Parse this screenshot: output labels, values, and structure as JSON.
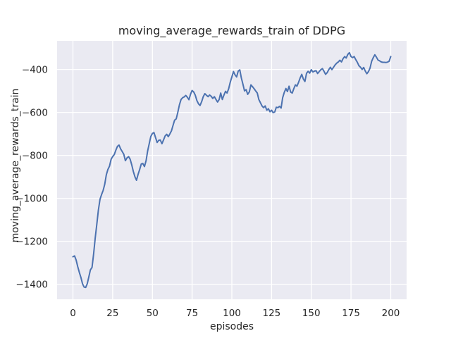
{
  "chart_data": {
    "type": "line",
    "title": "moving_average_rewards_train of DDPG",
    "xlabel": "episodes",
    "ylabel": "moving_average_rewards_train",
    "xlim": [
      -10,
      210
    ],
    "ylim": [
      -1470,
      -267
    ],
    "x_ticks": [
      0,
      25,
      50,
      75,
      100,
      125,
      150,
      175,
      200
    ],
    "x_tick_labels": [
      "0",
      "25",
      "50",
      "75",
      "100",
      "125",
      "150",
      "175",
      "200"
    ],
    "y_ticks": [
      -400,
      -600,
      -800,
      -1000,
      -1200,
      -1400
    ],
    "y_tick_labels": [
      "−400",
      "−600",
      "−800",
      "−1000",
      "−1200",
      "−1400"
    ],
    "grid": true,
    "legend": false,
    "plot_bg_color": "#eaeaf2",
    "grid_color": "#ffffff",
    "line_color": "#4c72b0",
    "text_color": "#262626",
    "series": [
      {
        "name": "moving_average_rewards_train",
        "x_start": 0,
        "x_step": 1,
        "values": [
          -1272,
          -1268,
          -1288,
          -1318,
          -1345,
          -1368,
          -1398,
          -1413,
          -1415,
          -1398,
          -1365,
          -1333,
          -1322,
          -1258,
          -1185,
          -1120,
          -1055,
          -1005,
          -983,
          -963,
          -935,
          -890,
          -866,
          -850,
          -818,
          -806,
          -796,
          -776,
          -758,
          -752,
          -770,
          -782,
          -795,
          -825,
          -812,
          -806,
          -818,
          -845,
          -875,
          -900,
          -916,
          -888,
          -866,
          -840,
          -838,
          -852,
          -825,
          -780,
          -745,
          -712,
          -698,
          -694,
          -718,
          -740,
          -730,
          -729,
          -746,
          -728,
          -710,
          -702,
          -713,
          -700,
          -686,
          -660,
          -636,
          -630,
          -600,
          -565,
          -540,
          -532,
          -528,
          -521,
          -530,
          -541,
          -515,
          -498,
          -505,
          -520,
          -545,
          -560,
          -568,
          -550,
          -527,
          -513,
          -520,
          -527,
          -519,
          -525,
          -535,
          -527,
          -540,
          -552,
          -540,
          -510,
          -540,
          -520,
          -502,
          -510,
          -490,
          -460,
          -435,
          -410,
          -425,
          -435,
          -408,
          -402,
          -440,
          -470,
          -500,
          -494,
          -516,
          -505,
          -472,
          -480,
          -490,
          -500,
          -510,
          -540,
          -555,
          -570,
          -578,
          -570,
          -590,
          -583,
          -597,
          -590,
          -601,
          -598,
          -576,
          -578,
          -572,
          -580,
          -532,
          -507,
          -489,
          -503,
          -478,
          -505,
          -510,
          -490,
          -472,
          -478,
          -460,
          -440,
          -423,
          -445,
          -456,
          -418,
          -409,
          -417,
          -401,
          -412,
          -408,
          -406,
          -419,
          -410,
          -401,
          -396,
          -409,
          -423,
          -415,
          -401,
          -390,
          -401,
          -390,
          -379,
          -371,
          -365,
          -357,
          -365,
          -350,
          -340,
          -347,
          -330,
          -322,
          -340,
          -345,
          -340,
          -355,
          -367,
          -383,
          -390,
          -400,
          -391,
          -408,
          -420,
          -410,
          -394,
          -362,
          -345,
          -332,
          -343,
          -356,
          -360,
          -365,
          -367,
          -367,
          -368,
          -366,
          -362,
          -340
        ]
      }
    ]
  }
}
